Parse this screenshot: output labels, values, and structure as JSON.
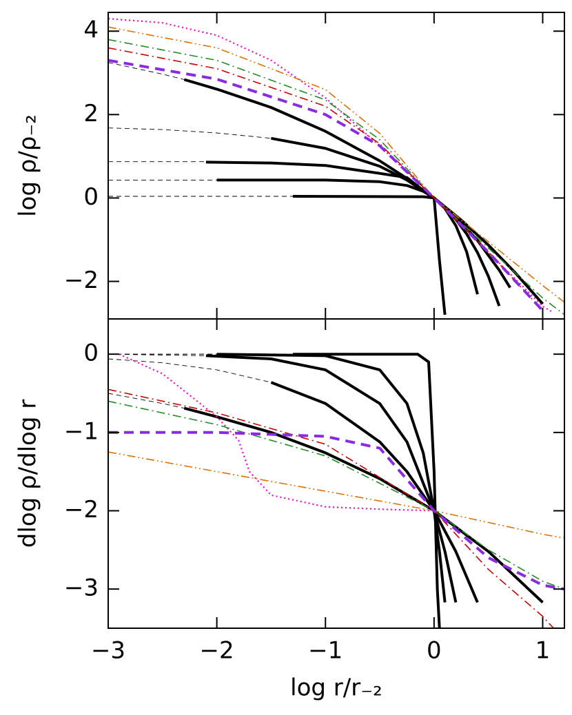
{
  "chart_data": [
    {
      "type": "line",
      "ylabel": "log ρ/ρ₋₂",
      "xlim": [
        -3,
        1.2
      ],
      "xticks": [
        -3,
        -2,
        -1,
        0,
        1
      ],
      "ylim": [
        -2.9,
        4.45
      ],
      "yticks": [
        {
          "value": -2,
          "label": "−2"
        },
        0,
        2,
        4
      ],
      "series": [
        {
          "color": "#000000",
          "style": "thin-dashed",
          "x": [
            -3,
            -1.3
          ],
          "values": [
            0.04,
            0.04
          ]
        },
        {
          "color": "#000000",
          "style": "solid",
          "x": [
            -1.3,
            -0.1,
            0,
            0.05,
            0.1
          ],
          "values": [
            0.04,
            0.03,
            0,
            -1.5,
            -2.8
          ]
        },
        {
          "color": "#000000",
          "style": "thin-dashed",
          "x": [
            -3,
            -2
          ],
          "values": [
            0.43,
            0.43
          ]
        },
        {
          "color": "#000000",
          "style": "solid",
          "x": [
            -2,
            -1,
            -0.5,
            -0.25,
            -0.1,
            0,
            0.1,
            0.2,
            0.3,
            0.4
          ],
          "values": [
            0.43,
            0.43,
            0.39,
            0.3,
            0.16,
            0,
            -0.25,
            -0.66,
            -1.29,
            -2.31
          ]
        },
        {
          "color": "#000000",
          "style": "thin-dashed",
          "x": [
            -3,
            -2.1
          ],
          "values": [
            0.87,
            0.87
          ]
        },
        {
          "color": "#000000",
          "style": "solid",
          "x": [
            -2.1,
            -1.5,
            -1,
            -0.5,
            -0.25,
            -0.1,
            0,
            0.1,
            0.2,
            0.3,
            0.4,
            0.5,
            0.6
          ],
          "values": [
            0.86,
            0.84,
            0.78,
            0.59,
            0.49,
            0.18,
            0,
            -0.22,
            -0.51,
            -0.86,
            -1.31,
            -1.88,
            -2.59
          ]
        },
        {
          "color": "#000000",
          "style": "thin-dashed",
          "x": [
            -3,
            -2.5,
            -2,
            -1.5
          ],
          "values": [
            1.68,
            1.64,
            1.56,
            1.43
          ]
        },
        {
          "color": "#000000",
          "style": "solid",
          "x": [
            -1.5,
            -1,
            -0.5,
            -0.25,
            0,
            0.2,
            0.4,
            0.6,
            0.7
          ],
          "values": [
            1.43,
            1.19,
            0.76,
            0.43,
            0,
            -0.45,
            -1.02,
            -1.73,
            -2.15
          ]
        },
        {
          "color": "#000000",
          "style": "thin-dashed",
          "x": [
            -3,
            -2.5,
            -2.3
          ],
          "values": [
            3.25,
            2.97,
            2.84
          ]
        },
        {
          "color": "#000000",
          "style": "solid",
          "x": [
            -2.3,
            -2,
            -1.5,
            -1,
            -0.5,
            -0.25,
            0,
            0.25,
            0.5,
            0.75,
            1
          ],
          "values": [
            2.84,
            2.61,
            2.17,
            1.6,
            0.89,
            0.47,
            0,
            -0.53,
            -1.13,
            -1.8,
            -2.54
          ]
        },
        {
          "color": "#ff00cc",
          "style": "dotted",
          "x": [
            -3,
            -2.5,
            -2,
            -1.5,
            -1,
            -0.5,
            0,
            0.5,
            1,
            1.1
          ],
          "values": [
            4.3,
            4.2,
            3.9,
            3.3,
            2.4,
            1.25,
            0,
            -1.3,
            -2.6,
            -2.75
          ]
        },
        {
          "color": "#e07000",
          "style": "dash-dot-dot",
          "x": [
            -3,
            -2,
            -1,
            -0.5,
            0,
            0.5,
            1,
            1.2
          ],
          "values": [
            4.1,
            3.6,
            2.6,
            1.55,
            0,
            -1.05,
            -2.1,
            -2.5
          ]
        },
        {
          "color": "#228b22",
          "style": "dash-dot",
          "x": [
            -3,
            -2,
            -1,
            -0.5,
            0,
            0.5,
            1,
            1.2
          ],
          "values": [
            3.8,
            3.3,
            2.35,
            1.4,
            0,
            -1.2,
            -2.4,
            -2.8
          ]
        },
        {
          "color": "#cc0000",
          "style": "dash-dot",
          "x": [
            -3,
            -2,
            -1,
            -0.5,
            0,
            0.5,
            1
          ],
          "values": [
            3.6,
            3.1,
            2.2,
            1.3,
            0,
            -1.3,
            -2.7
          ]
        },
        {
          "color": "#8a2be2",
          "style": "dashed",
          "x": [
            -3,
            -2,
            -1,
            -0.5,
            0,
            0.5,
            1
          ],
          "values": [
            3.3,
            2.85,
            2.0,
            1.25,
            0,
            -1.3,
            -2.7
          ]
        }
      ]
    },
    {
      "type": "line",
      "ylabel": "dlog ρ/dlog r",
      "xlabel": "log r/r₋₂",
      "xlim": [
        -3,
        1.2
      ],
      "xticks": [
        {
          "value": -3,
          "label": "−3"
        },
        {
          "value": -2,
          "label": "−2"
        },
        {
          "value": -1,
          "label": "−1"
        },
        0,
        1
      ],
      "ylim": [
        -3.5,
        0.45
      ],
      "yticks": [
        {
          "value": -3,
          "label": "−3"
        },
        {
          "value": -2,
          "label": "−2"
        },
        {
          "value": -1,
          "label": "−1"
        },
        0
      ],
      "series": [
        {
          "color": "#000000",
          "style": "thin-dashed",
          "x": [
            -3,
            -1.3
          ],
          "values": [
            0,
            0
          ]
        },
        {
          "color": "#000000",
          "style": "solid",
          "x": [
            -1.3,
            -0.15,
            -0.05,
            0,
            0.03,
            0.05
          ],
          "values": [
            0,
            0,
            -0.1,
            -1.5,
            -3.0,
            -3.5
          ]
        },
        {
          "color": "#000000",
          "style": "thin-dashed",
          "x": [
            -3,
            -2
          ],
          "values": [
            0,
            0
          ]
        },
        {
          "color": "#000000",
          "style": "solid",
          "x": [
            -2,
            -1,
            -0.5,
            -0.25,
            -0.1,
            0,
            0.05,
            0.1
          ],
          "values": [
            0,
            -0.02,
            -0.2,
            -0.63,
            -1.26,
            -2,
            -2.52,
            -3.17
          ]
        },
        {
          "color": "#000000",
          "style": "thin-dashed",
          "x": [
            -3,
            -2.1
          ],
          "values": [
            0,
            -0.02
          ]
        },
        {
          "color": "#000000",
          "style": "solid",
          "x": [
            -2.1,
            -1.5,
            -1,
            -0.5,
            -0.25,
            0,
            0.1,
            0.2
          ],
          "values": [
            -0.02,
            -0.06,
            -0.2,
            -0.63,
            -1.12,
            -2,
            -2.52,
            -3.17
          ]
        },
        {
          "color": "#000000",
          "style": "thin-dashed",
          "x": [
            -3,
            -2.5,
            -2,
            -1.5
          ],
          "values": [
            -0.06,
            -0.11,
            -0.2,
            -0.36
          ]
        },
        {
          "color": "#000000",
          "style": "solid",
          "x": [
            -1.5,
            -1,
            -0.5,
            -0.25,
            0,
            0.2,
            0.4
          ],
          "values": [
            -0.36,
            -0.63,
            -1.12,
            -1.5,
            -2,
            -2.52,
            -3.17
          ]
        },
        {
          "color": "#000000",
          "style": "thin-dashed",
          "x": [
            -3,
            -2.5,
            -2.3
          ],
          "values": [
            -0.5,
            -0.63,
            -0.69
          ]
        },
        {
          "color": "#000000",
          "style": "solid",
          "x": [
            -2.3,
            -2,
            -1.5,
            -1,
            -0.5,
            0,
            0.5,
            1
          ],
          "values": [
            -0.69,
            -0.8,
            -1.0,
            -1.26,
            -1.59,
            -2,
            -2.52,
            -3.17
          ]
        },
        {
          "color": "#ff00cc",
          "style": "dotted",
          "x": [
            -2.9,
            -2.5,
            -2,
            -1.8,
            -1.7,
            -1.5,
            -1,
            -0.5,
            0
          ],
          "values": [
            0,
            -0.25,
            -0.8,
            -1.1,
            -1.5,
            -1.8,
            -1.95,
            -1.98,
            -2
          ]
        },
        {
          "color": "#e07000",
          "style": "dash-dot-dot",
          "x": [
            -3,
            -2,
            -1,
            0,
            0.5,
            1,
            1.2
          ],
          "values": [
            -1.25,
            -1.5,
            -1.75,
            -2,
            -2.15,
            -2.3,
            -2.35
          ]
        },
        {
          "color": "#228b22",
          "style": "dash-dot",
          "x": [
            -3,
            -2,
            -1,
            0,
            0.5,
            1,
            1.2
          ],
          "values": [
            -0.6,
            -0.9,
            -1.3,
            -2,
            -2.5,
            -2.9,
            -3.0
          ]
        },
        {
          "color": "#cc0000",
          "style": "dash-dot",
          "x": [
            -3,
            -2,
            -1,
            0,
            0.5,
            1,
            1.1
          ],
          "values": [
            -0.45,
            -0.75,
            -1.15,
            -2,
            -2.75,
            -3.35,
            -3.5
          ]
        },
        {
          "color": "#8a2be2",
          "style": "dashed",
          "x": [
            -3,
            -2,
            -1,
            -0.5,
            0,
            0.5,
            1,
            1.2
          ],
          "values": [
            -1.0,
            -1.0,
            -1.05,
            -1.2,
            -2,
            -2.6,
            -2.95,
            -3.0
          ]
        }
      ]
    }
  ]
}
